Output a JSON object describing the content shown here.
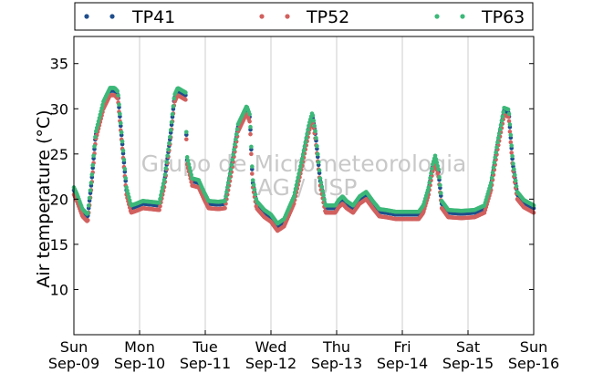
{
  "chart_data": {
    "type": "scatter",
    "ylabel": "Air temperature (°C)",
    "ylim": [
      5,
      38
    ],
    "yticks": [
      10,
      15,
      20,
      25,
      30,
      35
    ],
    "xlim_days": [
      0,
      7
    ],
    "xticks": [
      {
        "day": 0,
        "weekday": "Sun",
        "date": "Sep-09"
      },
      {
        "day": 1,
        "weekday": "Mon",
        "date": "Sep-10"
      },
      {
        "day": 2,
        "weekday": "Tue",
        "date": "Sep-11"
      },
      {
        "day": 3,
        "weekday": "Wed",
        "date": "Sep-12"
      },
      {
        "day": 4,
        "weekday": "Thu",
        "date": "Sep-13"
      },
      {
        "day": 5,
        "weekday": "Fri",
        "date": "Sep-14"
      },
      {
        "day": 6,
        "weekday": "Sat",
        "date": "Sep-15"
      },
      {
        "day": 7,
        "weekday": "Sun",
        "date": "Sep-16"
      }
    ],
    "grid": "vertical",
    "legend_position": "top",
    "watermark": [
      "Grupo de Micrometeorologia",
      "IAG / USP"
    ],
    "series": [
      {
        "name": "TP41",
        "color": "#1f4e8c",
        "offset": 0.0
      },
      {
        "name": "TP52",
        "color": "#d1605e",
        "offset": -0.5
      },
      {
        "name": "TP63",
        "color": "#3cb878",
        "offset": 0.3
      }
    ],
    "base_profile": [
      [
        0.0,
        21.0
      ],
      [
        0.05,
        20.2
      ],
      [
        0.13,
        18.6
      ],
      [
        0.21,
        18.0
      ],
      [
        0.27,
        22.0
      ],
      [
        0.33,
        27.0
      ],
      [
        0.45,
        30.5
      ],
      [
        0.55,
        32.0
      ],
      [
        0.62,
        32.0
      ],
      [
        0.67,
        31.6
      ],
      [
        0.72,
        27.5
      ],
      [
        0.8,
        21.0
      ],
      [
        0.87,
        19.0
      ],
      [
        0.95,
        19.2
      ],
      [
        1.05,
        19.5
      ],
      [
        1.3,
        19.3
      ],
      [
        1.38,
        22.0
      ],
      [
        1.47,
        27.0
      ],
      [
        1.53,
        31.2
      ],
      [
        1.58,
        32.0
      ],
      [
        1.7,
        31.5
      ],
      [
        1.72,
        24.5
      ],
      [
        1.8,
        22.0
      ],
      [
        1.9,
        21.8
      ],
      [
        1.98,
        20.5
      ],
      [
        2.05,
        19.5
      ],
      [
        2.2,
        19.4
      ],
      [
        2.3,
        19.5
      ],
      [
        2.4,
        23.5
      ],
      [
        2.5,
        28.0
      ],
      [
        2.63,
        30.0
      ],
      [
        2.68,
        29.0
      ],
      [
        2.72,
        22.0
      ],
      [
        2.78,
        19.5
      ],
      [
        2.9,
        18.5
      ],
      [
        3.0,
        18.0
      ],
      [
        3.1,
        17.0
      ],
      [
        3.2,
        17.5
      ],
      [
        3.35,
        20.0
      ],
      [
        3.47,
        24.0
      ],
      [
        3.58,
        28.0
      ],
      [
        3.63,
        29.3
      ],
      [
        3.68,
        27.0
      ],
      [
        3.75,
        22.0
      ],
      [
        3.83,
        19.0
      ],
      [
        3.98,
        19.0
      ],
      [
        4.03,
        19.6
      ],
      [
        4.09,
        20.0
      ],
      [
        4.15,
        19.5
      ],
      [
        4.25,
        19.0
      ],
      [
        4.35,
        20.0
      ],
      [
        4.45,
        20.5
      ],
      [
        4.55,
        19.5
      ],
      [
        4.65,
        18.6
      ],
      [
        4.75,
        18.5
      ],
      [
        4.9,
        18.3
      ],
      [
        5.05,
        18.3
      ],
      [
        5.25,
        18.3
      ],
      [
        5.32,
        19.0
      ],
      [
        5.4,
        21.0
      ],
      [
        5.46,
        23.5
      ],
      [
        5.5,
        24.5
      ],
      [
        5.55,
        23.0
      ],
      [
        5.6,
        19.5
      ],
      [
        5.7,
        18.5
      ],
      [
        5.9,
        18.4
      ],
      [
        6.1,
        18.5
      ],
      [
        6.25,
        19.0
      ],
      [
        6.35,
        21.5
      ],
      [
        6.45,
        26.0
      ],
      [
        6.55,
        29.8
      ],
      [
        6.62,
        29.6
      ],
      [
        6.68,
        24.0
      ],
      [
        6.75,
        20.5
      ],
      [
        6.85,
        19.6
      ],
      [
        7.0,
        19.0
      ]
    ]
  }
}
